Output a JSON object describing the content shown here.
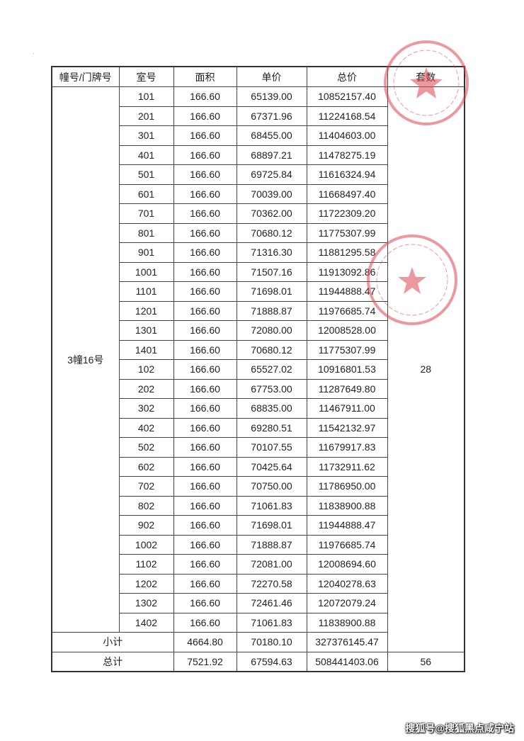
{
  "headers": [
    "幢号/门牌号",
    "室号",
    "面积",
    "单价",
    "总价",
    "套数"
  ],
  "building": "3幢16号",
  "units_count": "28",
  "rows": [
    [
      "101",
      "166.60",
      "65139.00",
      "10852157.40"
    ],
    [
      "201",
      "166.60",
      "67371.96",
      "11224168.54"
    ],
    [
      "301",
      "166.60",
      "68455.00",
      "11404603.00"
    ],
    [
      "401",
      "166.60",
      "68897.21",
      "11478275.19"
    ],
    [
      "501",
      "166.60",
      "69725.84",
      "11616324.94"
    ],
    [
      "601",
      "166.60",
      "70039.00",
      "11668497.40"
    ],
    [
      "701",
      "166.60",
      "70362.00",
      "11722309.20"
    ],
    [
      "801",
      "166.60",
      "70680.12",
      "11775307.99"
    ],
    [
      "901",
      "166.60",
      "71316.30",
      "11881295.58"
    ],
    [
      "1001",
      "166.60",
      "71507.16",
      "11913092.86"
    ],
    [
      "1101",
      "166.60",
      "71698.01",
      "11944888.47"
    ],
    [
      "1201",
      "166.60",
      "71888.87",
      "11976685.74"
    ],
    [
      "1301",
      "166.60",
      "72080.00",
      "12008528.00"
    ],
    [
      "1401",
      "166.60",
      "70680.12",
      "11775307.99"
    ],
    [
      "102",
      "166.60",
      "65527.02",
      "10916801.53"
    ],
    [
      "202",
      "166.60",
      "67753.00",
      "11287649.80"
    ],
    [
      "302",
      "166.60",
      "68835.00",
      "11467911.00"
    ],
    [
      "402",
      "166.60",
      "69280.51",
      "11542132.97"
    ],
    [
      "502",
      "166.60",
      "70107.55",
      "11679917.83"
    ],
    [
      "602",
      "166.60",
      "70425.64",
      "11732911.62"
    ],
    [
      "702",
      "166.60",
      "70750.00",
      "11786950.00"
    ],
    [
      "802",
      "166.60",
      "71061.83",
      "11838900.88"
    ],
    [
      "902",
      "166.60",
      "71698.01",
      "11944888.47"
    ],
    [
      "1002",
      "166.60",
      "71888.87",
      "11976685.74"
    ],
    [
      "1102",
      "166.60",
      "72081.00",
      "12008694.60"
    ],
    [
      "1202",
      "166.60",
      "72270.58",
      "12040278.63"
    ],
    [
      "1302",
      "166.60",
      "72461.46",
      "12072079.24"
    ],
    [
      "1402",
      "166.60",
      "71061.83",
      "11838900.88"
    ]
  ],
  "subtotal": {
    "label": "小计",
    "area": "4664.80",
    "unit_price": "70180.10",
    "total_price": "327376145.47"
  },
  "total": {
    "label": "总计",
    "area": "7521.92",
    "unit_price": "67594.63",
    "total_price": "508441403.06",
    "count": "56"
  },
  "stamp_color": "#e0444f",
  "watermark": "搜狐号@搜狐黑点咸宁站"
}
